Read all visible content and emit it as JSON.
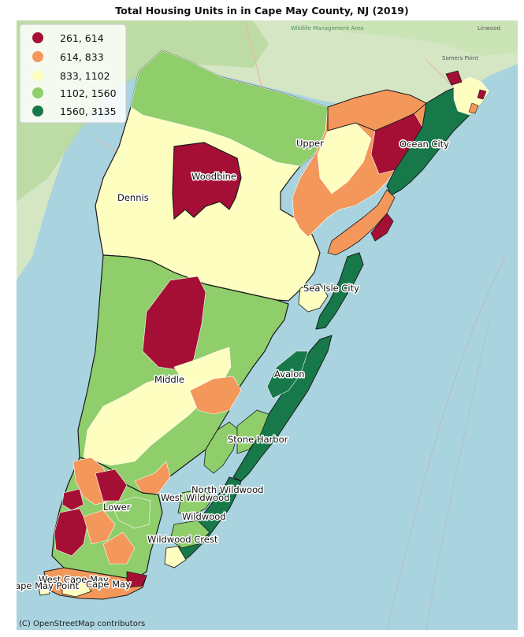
{
  "title": "Total Housing Units in in Cape May County, NJ (2019)",
  "legend": {
    "items": [
      {
        "label": "261, 614",
        "color": "#a50f35"
      },
      {
        "label": "614, 833",
        "color": "#f4975a"
      },
      {
        "label": "833, 1102",
        "color": "#fefec0"
      },
      {
        "label": "1102, 1560",
        "color": "#8fce6b"
      },
      {
        "label": "1560, 3135",
        "color": "#17794a"
      }
    ]
  },
  "places": [
    {
      "name": "Upper"
    },
    {
      "name": "Ocean City"
    },
    {
      "name": "Woodbine"
    },
    {
      "name": "Dennis"
    },
    {
      "name": "Sea Isle City"
    },
    {
      "name": "Avalon"
    },
    {
      "name": "Middle"
    },
    {
      "name": "Stone Harbor"
    },
    {
      "name": "North Wildwood"
    },
    {
      "name": "West Wildwood"
    },
    {
      "name": "Lower"
    },
    {
      "name": "Wildwood"
    },
    {
      "name": "Wildwood Crest"
    },
    {
      "name": "West Cape May"
    },
    {
      "name": "Cape May Point"
    },
    {
      "name": "Cape May"
    }
  ],
  "basemap_labels": {
    "management_area": "Wildlife Management Area",
    "linwood": "Linwood",
    "somers_point": "Somers Point"
  },
  "attribution": "(C) OpenStreetMap contributors",
  "colors": {
    "water": "#a9d3df",
    "land": "#d9e6cc",
    "forest": "#b9d9a0",
    "boundary": "#1a1a1a"
  }
}
